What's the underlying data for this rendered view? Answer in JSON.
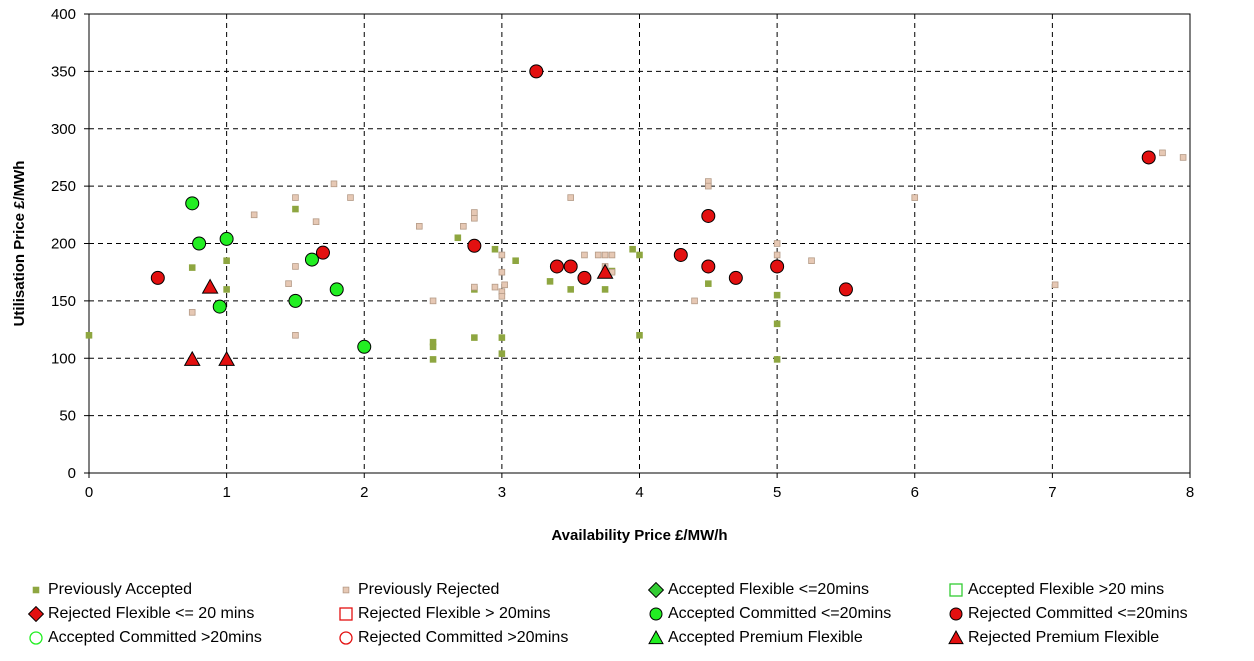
{
  "chart_data": {
    "type": "scatter",
    "title": "",
    "xlabel": "Availability Price £/MW/h",
    "ylabel": "Utilisation Price £/MWh",
    "xlim": [
      0,
      8
    ],
    "ylim": [
      0,
      400
    ],
    "x_ticks": [
      "0",
      "1",
      "2",
      "3",
      "4",
      "5",
      "6",
      "7",
      "8"
    ],
    "y_ticks": [
      "0",
      "50",
      "100",
      "150",
      "200",
      "250",
      "300",
      "350",
      "400"
    ],
    "grid": true,
    "legend_position": "bottom",
    "series": [
      {
        "name": "Previously Accepted",
        "marker": "small-square",
        "fill": "#8ea640",
        "stroke": "#8ea640",
        "points": [
          [
            0,
            120
          ],
          [
            0.75,
            179
          ],
          [
            1,
            185
          ],
          [
            1,
            160
          ],
          [
            1.5,
            230
          ],
          [
            2.5,
            114
          ],
          [
            2.5,
            110
          ],
          [
            2.5,
            99
          ],
          [
            2.68,
            205
          ],
          [
            2.8,
            118
          ],
          [
            2.8,
            160
          ],
          [
            2.95,
            195
          ],
          [
            3,
            118
          ],
          [
            3,
            104
          ],
          [
            3.1,
            185
          ],
          [
            3.35,
            167
          ],
          [
            3.5,
            160
          ],
          [
            3.75,
            160
          ],
          [
            3.75,
            176
          ],
          [
            3.8,
            176
          ],
          [
            3.95,
            195
          ],
          [
            4,
            190
          ],
          [
            4,
            120
          ],
          [
            4.5,
            165
          ],
          [
            5,
            155
          ],
          [
            5,
            130
          ],
          [
            5,
            99
          ]
        ]
      },
      {
        "name": "Previously Rejected",
        "marker": "small-square",
        "fill": "#e6c8b4",
        "stroke": "#b49a86",
        "points": [
          [
            0.75,
            140
          ],
          [
            1.2,
            225
          ],
          [
            1.5,
            240
          ],
          [
            1.5,
            180
          ],
          [
            1.5,
            120
          ],
          [
            1.45,
            165
          ],
          [
            1.65,
            219
          ],
          [
            1.78,
            252
          ],
          [
            1.9,
            240
          ],
          [
            2.4,
            215
          ],
          [
            2.5,
            150
          ],
          [
            2.72,
            215
          ],
          [
            2.8,
            222
          ],
          [
            2.8,
            227
          ],
          [
            2.8,
            162
          ],
          [
            2.95,
            162
          ],
          [
            3,
            190
          ],
          [
            3,
            175
          ],
          [
            3,
            158
          ],
          [
            3,
            154
          ],
          [
            3.02,
            164
          ],
          [
            3.5,
            240
          ],
          [
            3.6,
            190
          ],
          [
            3.7,
            190
          ],
          [
            3.75,
            190
          ],
          [
            3.8,
            190
          ],
          [
            3.75,
            180
          ],
          [
            3.8,
            175
          ],
          [
            4.4,
            150
          ],
          [
            4.5,
            254
          ],
          [
            4.5,
            250
          ],
          [
            5,
            200
          ],
          [
            5,
            190
          ],
          [
            5.25,
            185
          ],
          [
            6,
            240
          ],
          [
            7.02,
            164
          ],
          [
            7.8,
            279
          ],
          [
            7.95,
            275
          ]
        ]
      },
      {
        "name": "Accepted Flexible <=20mins",
        "marker": "diamond",
        "fill": "#33cc33",
        "stroke": "#000000",
        "points": []
      },
      {
        "name": "Accepted Flexible >20 mins",
        "marker": "square-open",
        "fill": "none",
        "stroke": "#33cc33",
        "points": []
      },
      {
        "name": "Rejected Flexible <= 20 mins",
        "marker": "diamond",
        "fill": "#e31010",
        "stroke": "#000000",
        "points": []
      },
      {
        "name": "Rejected Flexible > 20mins",
        "marker": "square-open",
        "fill": "none",
        "stroke": "#e31010",
        "points": []
      },
      {
        "name": "Accepted Committed <=20mins",
        "marker": "circle",
        "fill": "#22ee22",
        "stroke": "#000000",
        "points": [
          [
            0.75,
            235
          ],
          [
            0.8,
            200
          ],
          [
            1,
            204
          ],
          [
            0.95,
            145
          ],
          [
            1.5,
            150
          ],
          [
            1.62,
            186
          ],
          [
            1.8,
            160
          ],
          [
            2,
            110
          ]
        ]
      },
      {
        "name": "Rejected Committed <=20mins",
        "marker": "circle",
        "fill": "#e31010",
        "stroke": "#000000",
        "points": [
          [
            0.5,
            170
          ],
          [
            1.7,
            192
          ],
          [
            2.8,
            198
          ],
          [
            3.25,
            350
          ],
          [
            3.4,
            180
          ],
          [
            3.5,
            180
          ],
          [
            3.6,
            170
          ],
          [
            4.3,
            190
          ],
          [
            4.5,
            224
          ],
          [
            4.5,
            180
          ],
          [
            4.7,
            170
          ],
          [
            5,
            180
          ],
          [
            5.5,
            160
          ],
          [
            7.7,
            275
          ]
        ]
      },
      {
        "name": "Accepted Committed >20mins",
        "marker": "circle-open",
        "fill": "none",
        "stroke": "#22ee22",
        "points": []
      },
      {
        "name": "Rejected Committed >20mins",
        "marker": "circle-open",
        "fill": "none",
        "stroke": "#e31010",
        "points": []
      },
      {
        "name": "Accepted Premium Flexible",
        "marker": "triangle",
        "fill": "#22ee22",
        "stroke": "#000000",
        "points": []
      },
      {
        "name": "Rejected Premium Flexible",
        "marker": "triangle",
        "fill": "#e31010",
        "stroke": "#000000",
        "points": [
          [
            0.88,
            162
          ],
          [
            0.75,
            99
          ],
          [
            1,
            99
          ],
          [
            3.75,
            175
          ]
        ]
      }
    ]
  }
}
